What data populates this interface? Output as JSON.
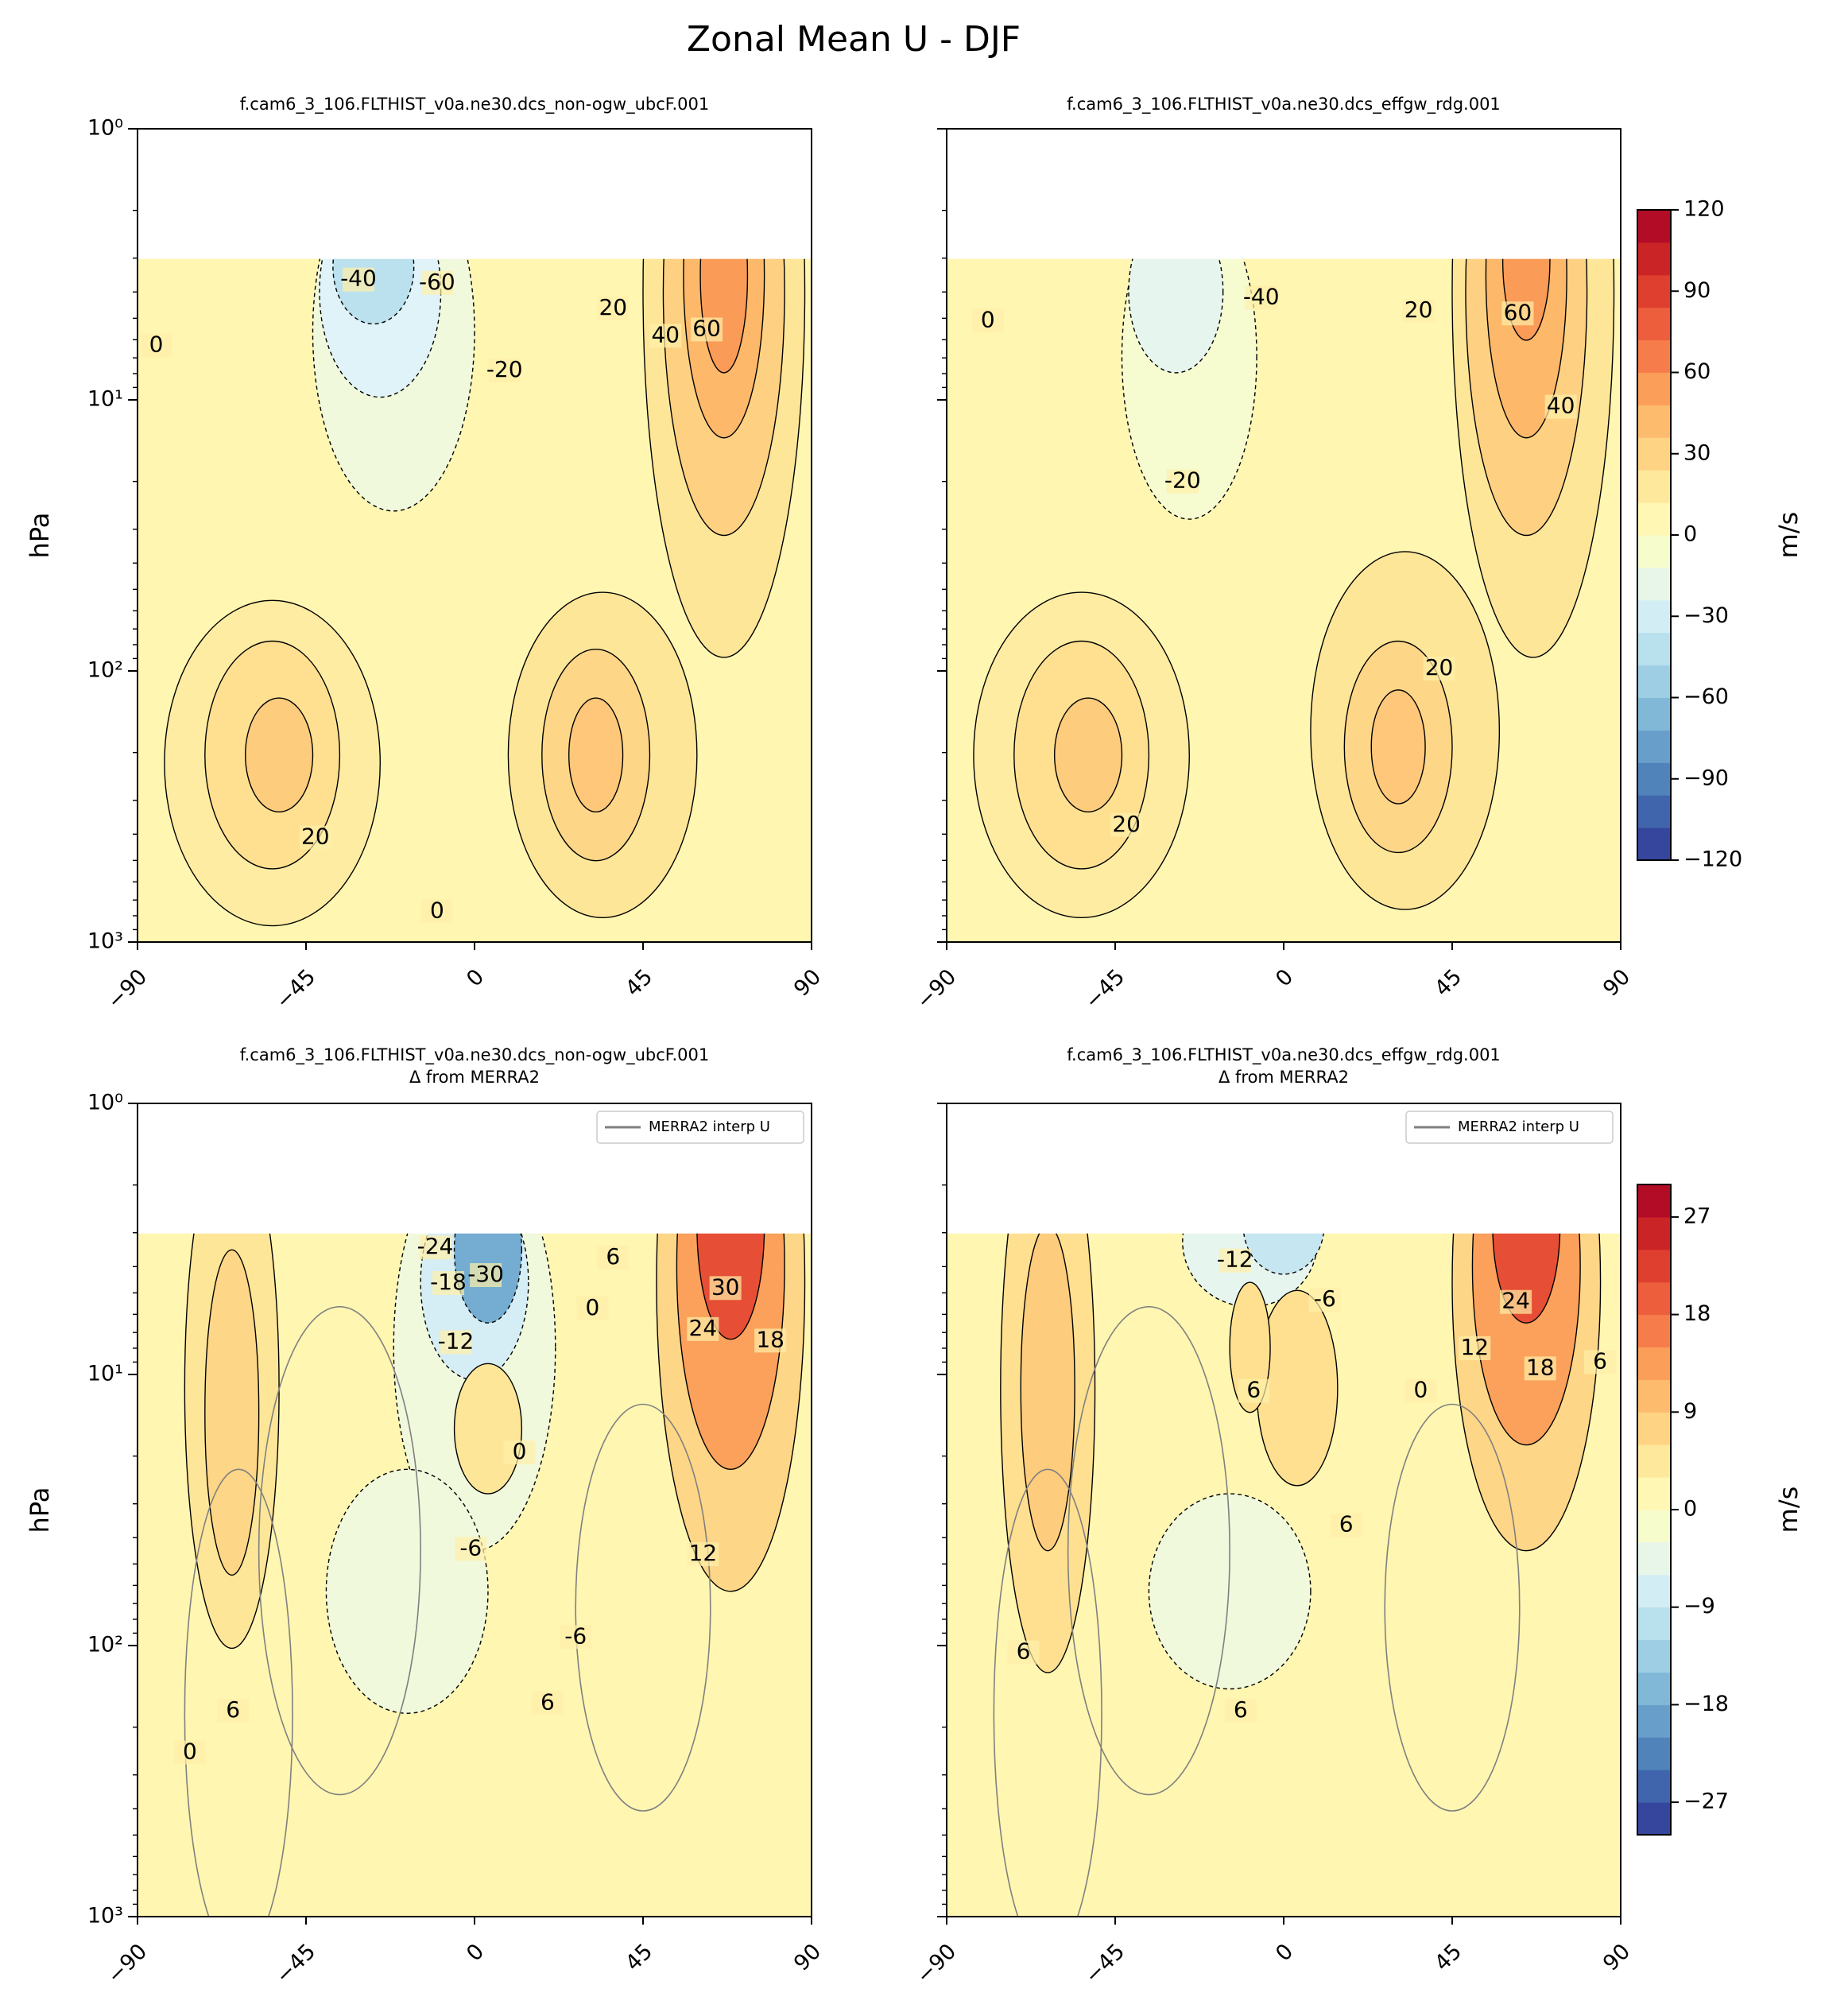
{
  "title": "Zonal Mean U - DJF",
  "chart_data": [
    {
      "type": "contour",
      "title": "f.cam6_3_106.FLTHIST_v0a.ne30.dcs_non-ogw_ubcF.001",
      "ylabel": "hPa",
      "log_y": true,
      "y_inverted": true,
      "xlim": [
        -90,
        90
      ],
      "xticks": [
        {
          "value": -90,
          "label": "−90"
        },
        {
          "value": -45,
          "label": "−45"
        },
        0,
        45,
        90
      ],
      "ylim": [
        1,
        1000
      ],
      "yticks": [
        {
          "value": 1,
          "label": "10⁰"
        },
        {
          "value": 10,
          "label": "10¹"
        },
        {
          "value": 100,
          "label": "10²"
        },
        {
          "value": 1000,
          "label": "10³"
        }
      ],
      "annotations": [
        {
          "value": -40,
          "x": -31,
          "y": 3.6
        },
        {
          "value": -60,
          "x": -10,
          "y": 3.7
        },
        {
          "value": 20,
          "x": 37,
          "y": 4.6
        },
        {
          "value": 40,
          "x": 51,
          "y": 5.8
        },
        {
          "value": 60,
          "x": 62,
          "y": 5.5
        },
        {
          "value": -20,
          "x": 8,
          "y": 7.8
        },
        {
          "value": 0,
          "x": -85,
          "y": 6.3
        },
        {
          "value": 20,
          "x": -42.5,
          "y": 412
        },
        {
          "value": 0,
          "x": -10,
          "y": 770
        }
      ]
    },
    {
      "type": "contour",
      "title": "f.cam6_3_106.FLTHIST_v0a.ne30.dcs_effgw_rdg.001",
      "log_y": true,
      "y_inverted": true,
      "xlim": [
        -90,
        90
      ],
      "xticks": [
        {
          "value": -90,
          "label": "−90"
        },
        {
          "value": -45,
          "label": "−45"
        },
        0,
        45,
        90
      ],
      "ylim": [
        1,
        1000
      ],
      "yticks": [
        1,
        10,
        100,
        1000
      ],
      "annotations": [
        {
          "value": -40,
          "x": -6,
          "y": 4.2
        },
        {
          "value": 0,
          "x": -79,
          "y": 5.1
        },
        {
          "value": 20,
          "x": 36,
          "y": 4.7
        },
        {
          "value": 60,
          "x": 62.5,
          "y": 4.8
        },
        {
          "value": 40,
          "x": 74,
          "y": 10.6
        },
        {
          "value": -20,
          "x": -27,
          "y": 20
        },
        {
          "value": 20,
          "x": 41.5,
          "y": 98
        },
        {
          "value": 20,
          "x": -42,
          "y": 370
        }
      ],
      "colorbar": {
        "label": "m/s",
        "lim": [
          -120,
          120
        ],
        "ticks": [
          120,
          90,
          60,
          30,
          0,
          {
            "value": -30,
            "label": "−30"
          },
          {
            "value": -60,
            "label": "−60"
          },
          {
            "value": -90,
            "label": "−90"
          },
          {
            "value": -120,
            "label": "−120"
          }
        ]
      }
    },
    {
      "type": "contour",
      "title": "f.cam6_3_106.FLTHIST_v0a.ne30.dcs_non-ogw_ubcF.001",
      "subtitle": "Δ from MERRA2",
      "ylabel": "hPa",
      "log_y": true,
      "y_inverted": true,
      "xlim": [
        -90,
        90
      ],
      "xticks": [
        {
          "value": -90,
          "label": "−90"
        },
        {
          "value": -45,
          "label": "−45"
        },
        0,
        45,
        90
      ],
      "ylim": [
        1,
        1000
      ],
      "yticks": [
        {
          "value": 1,
          "label": "10⁰"
        },
        {
          "value": 10,
          "label": "10¹"
        },
        {
          "value": 100,
          "label": "10²"
        },
        {
          "value": 1000,
          "label": "10³"
        }
      ],
      "legend": {
        "label": "MERRA2 interp U",
        "color": "#808080",
        "loc": "upper right"
      },
      "annotations": [
        {
          "value": -24,
          "x": -10.5,
          "y": 3.4
        },
        {
          "value": -18,
          "x": -7,
          "y": 4.6
        },
        {
          "value": -30,
          "x": 3,
          "y": 4.3
        },
        {
          "value": 6,
          "x": 37,
          "y": 3.7
        },
        {
          "value": 30,
          "x": 67,
          "y": 4.8
        },
        {
          "value": 0,
          "x": 31.5,
          "y": 5.7
        },
        {
          "value": 24,
          "x": 61,
          "y": 6.8
        },
        {
          "value": 18,
          "x": 79,
          "y": 7.5
        },
        {
          "value": -12,
          "x": -5,
          "y": 7.6
        },
        {
          "value": 0,
          "x": 12,
          "y": 19.4
        },
        {
          "value": -6,
          "x": -1,
          "y": 44
        },
        {
          "value": 12,
          "x": 61,
          "y": 46
        },
        {
          "value": -6,
          "x": 27,
          "y": 93
        },
        {
          "value": 6,
          "x": -64.5,
          "y": 174
        },
        {
          "value": 0,
          "x": -76,
          "y": 248
        },
        {
          "value": 6,
          "x": 19.5,
          "y": 163
        }
      ]
    },
    {
      "type": "contour",
      "title": "f.cam6_3_106.FLTHIST_v0a.ne30.dcs_effgw_rdg.001",
      "subtitle": "Δ from MERRA2",
      "log_y": true,
      "y_inverted": true,
      "xlim": [
        -90,
        90
      ],
      "xticks": [
        {
          "value": -90,
          "label": "−90"
        },
        {
          "value": -45,
          "label": "−45"
        },
        0,
        45,
        90
      ],
      "ylim": [
        1,
        1000
      ],
      "yticks": [
        1,
        10,
        100,
        1000
      ],
      "legend": {
        "label": "MERRA2 interp U",
        "color": "#808080",
        "loc": "upper right"
      },
      "annotations": [
        {
          "value": -12,
          "x": -13,
          "y": 3.8
        },
        {
          "value": -6,
          "x": 11,
          "y": 5.3
        },
        {
          "value": 24,
          "x": 62,
          "y": 5.4
        },
        {
          "value": 12,
          "x": 51,
          "y": 8.0
        },
        {
          "value": 18,
          "x": 68.5,
          "y": 9.5
        },
        {
          "value": 6,
          "x": 84.5,
          "y": 9.0
        },
        {
          "value": 6,
          "x": -8,
          "y": 11.5
        },
        {
          "value": 0,
          "x": 36.6,
          "y": 11.5
        },
        {
          "value": 6,
          "x": 16.7,
          "y": 36
        },
        {
          "value": 6,
          "x": -69.5,
          "y": 106
        },
        {
          "value": 6,
          "x": -11.5,
          "y": 174
        }
      ],
      "colorbar": {
        "label": "m/s",
        "lim": [
          -30,
          30
        ],
        "ticks": [
          27,
          18,
          9,
          0,
          {
            "value": -9,
            "label": "−9"
          },
          {
            "value": -18,
            "label": "−18"
          },
          {
            "value": -27,
            "label": "−27"
          }
        ]
      }
    }
  ]
}
